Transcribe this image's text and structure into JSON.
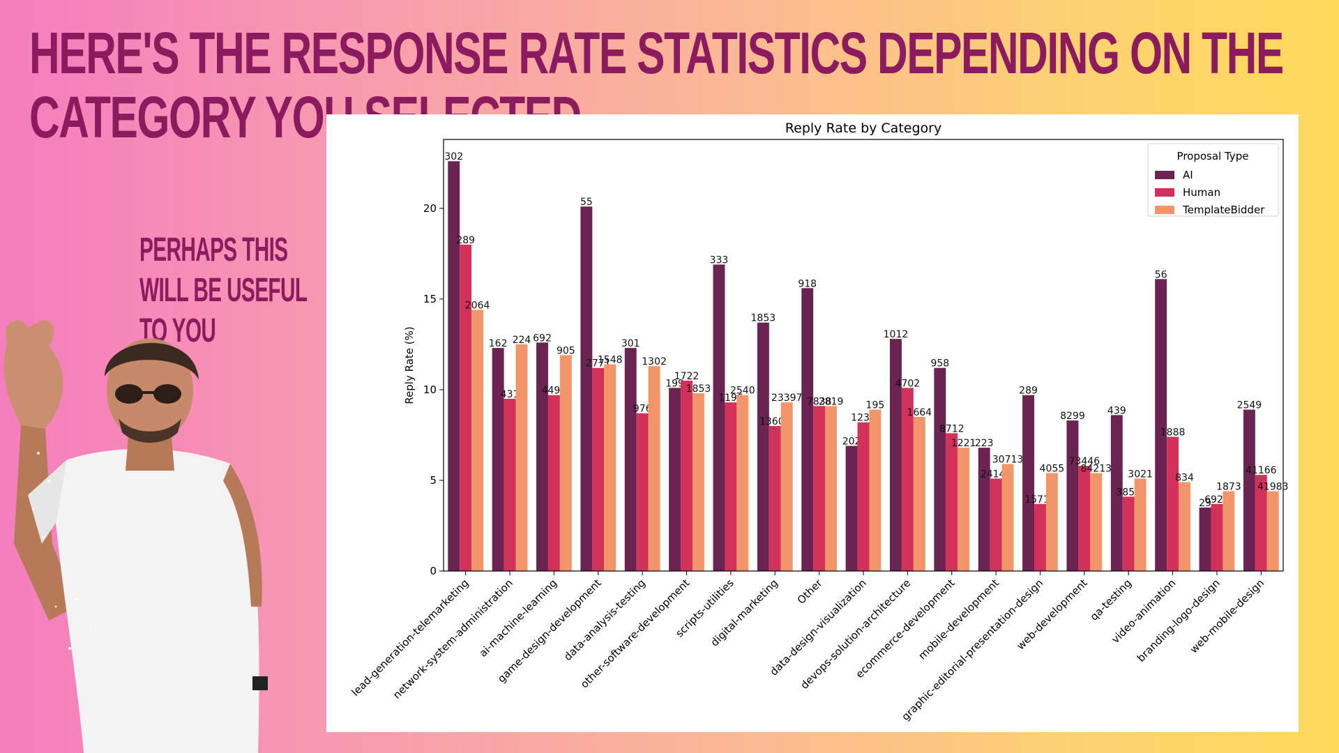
{
  "headline": "HERE'S THE RESPONSE RATE STATISTICS DEPENDING ON THE CATEGORY YOU SELECTED",
  "subline": "PERHAPS THIS WILL BE USEFUL TO YOU",
  "colors": {
    "AI": "#6b2452",
    "Human": "#d2325a",
    "TemplateBidder": "#f2956a",
    "headline": "#8c1a5e"
  },
  "chart_data": {
    "type": "bar",
    "title": "Reply Rate by Category",
    "xlabel": "",
    "ylabel": "Reply Rate (%)",
    "ylim": [
      0,
      23.8
    ],
    "yticks": [
      0,
      5,
      10,
      15,
      20
    ],
    "grid": false,
    "legend": {
      "title": "Proposal Type",
      "placement": "top-right"
    },
    "categories": [
      "lead-generation-telemarketing",
      "network-system-administration",
      "ai-machine-learning",
      "game-design-development",
      "data-analysis-testing",
      "other-software-development",
      "scripts-utilities",
      "digital-marketing",
      "Other",
      "data-design-visualization",
      "devops-solution-architecture",
      "ecommerce-development",
      "mobile-development",
      "graphic-editorial-presentation-design",
      "web-development",
      "qa-testing",
      "video-animation",
      "branding-logo-design",
      "web-mobile-design"
    ],
    "series": [
      {
        "name": "AI",
        "values": [
          22.6,
          12.3,
          12.6,
          20.1,
          12.3,
          10.1,
          16.9,
          13.7,
          15.6,
          6.9,
          12.8,
          11.2,
          6.8,
          9.7,
          8.3,
          8.6,
          16.1,
          3.5,
          8.9
        ],
        "labels": [
          "302",
          "162",
          "692",
          "55",
          "301",
          "199",
          "333",
          "1853",
          "918",
          "202",
          "1012",
          "958",
          "223",
          "289",
          "8299",
          "439",
          "56",
          "29",
          "2549"
        ]
      },
      {
        "name": "Human",
        "values": [
          18.0,
          9.5,
          9.7,
          11.2,
          8.7,
          10.5,
          9.3,
          8.0,
          9.1,
          8.2,
          10.1,
          7.6,
          5.1,
          3.7,
          5.8,
          4.1,
          7.4,
          3.7,
          5.3
        ],
        "labels": [
          "289",
          "431",
          "4499",
          "2771",
          "976",
          "1722",
          "1196",
          "13600",
          "7838",
          "1233",
          "4702",
          "8712",
          "24147",
          "15719",
          "73446",
          "3853",
          "1888",
          "6928",
          "41166"
        ]
      },
      {
        "name": "TemplateBidder",
        "values": [
          14.4,
          12.5,
          11.9,
          11.4,
          11.3,
          9.8,
          9.7,
          9.3,
          9.1,
          8.9,
          8.5,
          6.8,
          5.9,
          5.4,
          5.4,
          5.1,
          4.9,
          4.4,
          4.4
        ],
        "labels": [
          "2064",
          "224",
          "905",
          "1548",
          "1302",
          "1853",
          "2540",
          "23397",
          "2819",
          "195",
          "1664",
          "1221",
          "30713",
          "4055",
          "84213",
          "3021",
          "834",
          "1873",
          "41983"
        ]
      }
    ]
  }
}
